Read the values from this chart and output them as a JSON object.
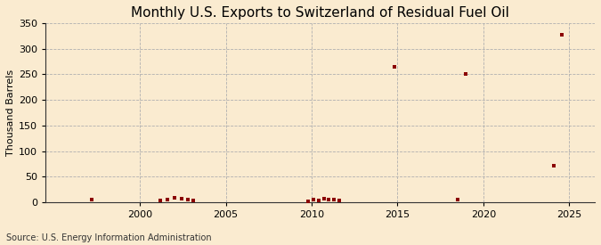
{
  "title": "Monthly U.S. Exports to Switzerland of Residual Fuel Oil",
  "ylabel": "Thousand Barrels",
  "source_text": "Source: U.S. Energy Information Administration",
  "background_color": "#faebd0",
  "xlim": [
    1994.5,
    2026.5
  ],
  "ylim": [
    0,
    350
  ],
  "yticks": [
    0,
    50,
    100,
    150,
    200,
    250,
    300,
    350
  ],
  "xticks": [
    2000,
    2005,
    2010,
    2015,
    2020,
    2025
  ],
  "scatter_color": "#8b0000",
  "marker": "s",
  "marker_size": 3.5,
  "data_points": [
    [
      1997.2,
      5
    ],
    [
      2001.2,
      3
    ],
    [
      2001.6,
      6
    ],
    [
      2002.0,
      9
    ],
    [
      2002.4,
      7
    ],
    [
      2002.8,
      5
    ],
    [
      2003.1,
      4
    ],
    [
      2009.8,
      2
    ],
    [
      2010.1,
      5
    ],
    [
      2010.4,
      4
    ],
    [
      2010.7,
      7
    ],
    [
      2011.0,
      6
    ],
    [
      2011.3,
      5
    ],
    [
      2011.6,
      4
    ],
    [
      2014.8,
      265
    ],
    [
      2018.5,
      5
    ],
    [
      2019.0,
      251
    ],
    [
      2024.1,
      72
    ],
    [
      2024.6,
      328
    ]
  ],
  "vgrid_positions": [
    2000,
    2005,
    2010,
    2015,
    2020,
    2025
  ],
  "hgrid_positions": [
    0,
    50,
    100,
    150,
    200,
    250,
    300,
    350
  ],
  "title_fontsize": 11,
  "axis_fontsize": 8,
  "tick_fontsize": 8,
  "source_fontsize": 7
}
